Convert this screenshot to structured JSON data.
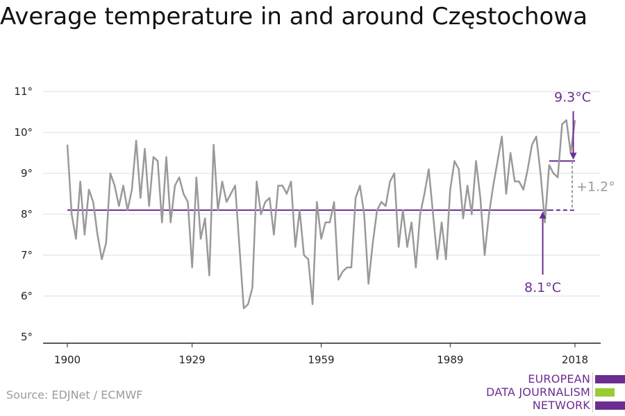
{
  "title": "Average temperature in and around Częstochowa",
  "source": "Source: EDJNet / ECMWF",
  "logo": {
    "lines": [
      "EUROPEAN",
      "DATA JOURNALISM",
      "NETWORK"
    ],
    "colors": [
      "#6b2d91",
      "#99cc33",
      "#6b2d91"
    ]
  },
  "colors": {
    "series": "#999999",
    "accent": "#6b2d91",
    "delta": "#999999",
    "grid": "#dddddd",
    "axis": "#222222"
  },
  "chart_data": {
    "type": "line",
    "title": "Average temperature in and around Częstochowa",
    "ylim": [
      5,
      11
    ],
    "xlim": [
      1900,
      2018
    ],
    "yticks": [
      "5°",
      "6°",
      "7°",
      "8°",
      "9°",
      "10°",
      "11°"
    ],
    "xticks": [
      "1900",
      "1929",
      "1959",
      "1989",
      "2018"
    ],
    "grid": true,
    "series": [
      {
        "x": [
          1900,
          1901,
          1902,
          1903,
          1904,
          1905,
          1906,
          1907,
          1908,
          1909,
          1910,
          1911,
          1912,
          1913,
          1914,
          1915,
          1916,
          1917,
          1918,
          1919,
          1920,
          1921,
          1922,
          1923,
          1924,
          1925,
          1926,
          1927,
          1928,
          1929,
          1930,
          1931,
          1932,
          1933,
          1934,
          1935,
          1936,
          1937,
          1938,
          1939,
          1940,
          1941,
          1942,
          1943,
          1944,
          1945,
          1946,
          1947,
          1948,
          1949,
          1950,
          1951,
          1952,
          1953,
          1954,
          1955,
          1956,
          1957,
          1958,
          1959,
          1960,
          1961,
          1962,
          1963,
          1964,
          1965,
          1966,
          1967,
          1968,
          1969,
          1970,
          1971,
          1972,
          1973,
          1974,
          1975,
          1976,
          1977,
          1978,
          1979,
          1980,
          1981,
          1982,
          1983,
          1984,
          1985,
          1986,
          1987,
          1988,
          1989,
          1990,
          1991,
          1992,
          1993,
          1994,
          1995,
          1996,
          1997,
          1998,
          1999,
          2000,
          2001,
          2002,
          2003,
          2004,
          2005,
          2006,
          2007,
          2008,
          2009,
          2010,
          2011,
          2012,
          2013,
          2014,
          2015,
          2016,
          2017,
          2018
        ],
        "values": [
          9.7,
          8.0,
          7.4,
          8.8,
          7.5,
          8.6,
          8.3,
          7.5,
          6.9,
          7.3,
          9.0,
          8.7,
          8.2,
          8.7,
          8.1,
          8.6,
          9.8,
          8.4,
          9.6,
          8.2,
          9.4,
          9.3,
          7.8,
          9.4,
          7.8,
          8.7,
          8.9,
          8.5,
          8.3,
          6.7,
          8.9,
          7.4,
          7.9,
          6.5,
          9.7,
          8.1,
          8.8,
          8.3,
          8.5,
          8.7,
          7.2,
          5.7,
          5.8,
          6.2,
          8.8,
          8.0,
          8.3,
          8.4,
          7.5,
          8.7,
          8.7,
          8.5,
          8.8,
          7.2,
          8.1,
          7.0,
          6.9,
          5.8,
          8.3,
          7.4,
          7.8,
          7.8,
          8.3,
          6.4,
          6.6,
          6.7,
          6.7,
          8.4,
          8.7,
          8.0,
          6.3,
          7.3,
          8.1,
          8.3,
          8.2,
          8.8,
          9.0,
          7.2,
          8.1,
          7.2,
          7.8,
          6.7,
          8.0,
          8.5,
          9.1,
          8.0,
          6.9,
          7.8,
          6.9,
          8.6,
          9.3,
          9.1,
          7.9,
          8.7,
          8.0,
          9.3,
          8.4,
          7.0,
          8.0,
          8.7,
          9.3,
          9.9,
          8.5,
          9.5,
          8.8,
          8.8,
          8.6,
          9.1,
          9.7,
          9.9,
          9.0,
          7.8,
          9.2,
          9.0,
          8.9,
          10.2,
          10.3,
          9.5,
          10.3
        ]
      }
    ],
    "annotations": {
      "baseline": {
        "value": 8.1,
        "from": 1900,
        "to": 2012,
        "dashed_to": 2018,
        "label": "8.1°C"
      },
      "recent": {
        "value": 9.3,
        "from": 2012,
        "to": 2018,
        "label": "9.3°C"
      },
      "delta_label": "+1.2°"
    }
  }
}
